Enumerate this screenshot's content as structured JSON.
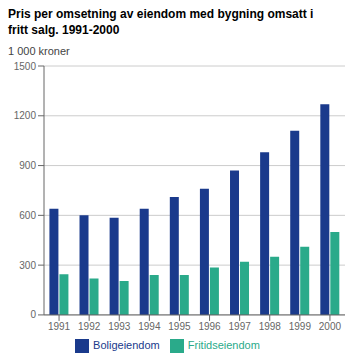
{
  "chart_data": {
    "type": "bar",
    "title": "Pris per omsetning av eiendom med bygning omsatt i\nfritt salg. 1991-2000",
    "y_label": "1 000 kroner",
    "categories": [
      "1991",
      "1992",
      "1993",
      "1994",
      "1995",
      "1996",
      "1997",
      "1998",
      "1999",
      "2000"
    ],
    "series": [
      {
        "name": "Boligeiendom",
        "color": "#1a3a8c",
        "values": [
          640,
          600,
          585,
          640,
          710,
          760,
          870,
          980,
          1110,
          1270
        ]
      },
      {
        "name": "Fritidseiendom",
        "color": "#2aaa8a",
        "values": [
          245,
          220,
          205,
          240,
          240,
          285,
          320,
          350,
          410,
          500
        ]
      }
    ],
    "ylim": [
      0,
      1500
    ],
    "yticks": [
      0,
      300,
      600,
      900,
      1200,
      1500
    ],
    "grid": true,
    "legend": "bottom"
  }
}
